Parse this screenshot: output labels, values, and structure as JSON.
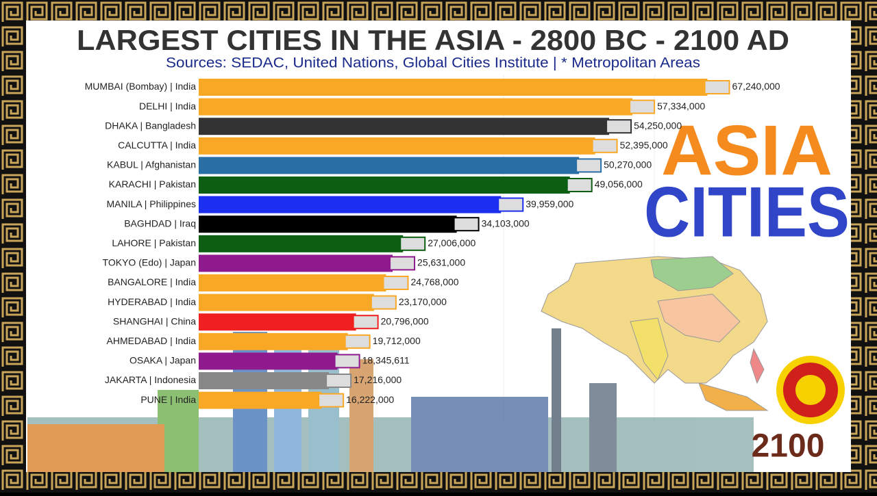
{
  "title": "LARGEST CITIES IN THE ASIA - 2800 BC - 2100 AD",
  "subtitle": "Sources: SEDAC, United Nations, Global Cities Institute | * Metropolitan Areas",
  "banner": {
    "line1": "ASIA",
    "line2": "CITIES"
  },
  "year": "2100",
  "chart_data": {
    "type": "bar",
    "orientation": "horizontal",
    "categories": [
      "MUMBAI (Bombay) | India",
      "DELHI | India",
      "DHAKA | Bangladesh",
      "CALCUTTA | India",
      "KABUL | Afghanistan",
      "KARACHI | Pakistan",
      "MANILA | Philippines",
      "BAGHDAD | Iraq",
      "LAHORE | Pakistan",
      "TOKYO (Edo) | Japan",
      "BANGALORE | India",
      "HYDERABAD | India",
      "SHANGHAI | China",
      "AHMEDABAD | India",
      "OSAKA | Japan",
      "JAKARTA | Indonesia",
      "PUNE | India"
    ],
    "values": [
      67240000,
      57334000,
      54250000,
      52395000,
      50270000,
      49056000,
      39959000,
      34103000,
      27006000,
      25631000,
      24768000,
      23170000,
      20796000,
      19712000,
      18345611,
      17216000,
      16222000
    ],
    "value_labels": [
      "67,240,000",
      "57,334,000",
      "54,250,000",
      "52,395,000",
      "50,270,000",
      "49,056,000",
      "39,959,000",
      "34,103,000",
      "27,006,000",
      "25,631,000",
      "24,768,000",
      "23,170,000",
      "20,796,000",
      "19,712,000",
      "18,345,611",
      "17,216,000",
      "16,222,000"
    ],
    "colors": [
      "#f9a825",
      "#f9a825",
      "#333333",
      "#f9a825",
      "#2a6ea6",
      "#0b5e12",
      "#1b2ff0",
      "#000000",
      "#0b5e12",
      "#8e1a8e",
      "#f9a825",
      "#f9a825",
      "#f02020",
      "#f9a825",
      "#8e1a8e",
      "#888888",
      "#f9a825"
    ],
    "xlim": [
      0,
      70000000
    ]
  }
}
